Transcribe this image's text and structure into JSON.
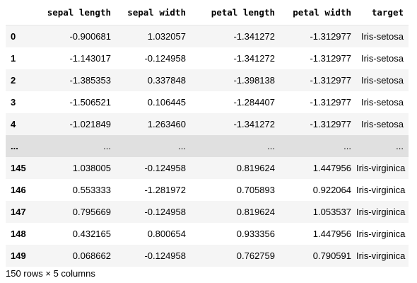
{
  "table": {
    "index_header": "",
    "columns": [
      "sepal length",
      "sepal width",
      "petal length",
      "petal width",
      "target"
    ],
    "rows": [
      {
        "index": "0",
        "cells": [
          "-0.900681",
          "1.032057",
          "-1.341272",
          "-1.312977",
          "Iris-setosa"
        ]
      },
      {
        "index": "1",
        "cells": [
          "-1.143017",
          "-0.124958",
          "-1.341272",
          "-1.312977",
          "Iris-setosa"
        ]
      },
      {
        "index": "2",
        "cells": [
          "-1.385353",
          "0.337848",
          "-1.398138",
          "-1.312977",
          "Iris-setosa"
        ]
      },
      {
        "index": "3",
        "cells": [
          "-1.506521",
          "0.106445",
          "-1.284407",
          "-1.312977",
          "Iris-setosa"
        ]
      },
      {
        "index": "4",
        "cells": [
          "-1.021849",
          "1.263460",
          "-1.341272",
          "-1.312977",
          "Iris-setosa"
        ]
      },
      {
        "index": "...",
        "cells": [
          "...",
          "...",
          "...",
          "...",
          "..."
        ]
      },
      {
        "index": "145",
        "cells": [
          "1.038005",
          "-0.124958",
          "0.819624",
          "1.447956",
          "Iris-virginica"
        ]
      },
      {
        "index": "146",
        "cells": [
          "0.553333",
          "-1.281972",
          "0.705893",
          "0.922064",
          "Iris-virginica"
        ]
      },
      {
        "index": "147",
        "cells": [
          "0.795669",
          "-0.124958",
          "0.819624",
          "1.053537",
          "Iris-virginica"
        ]
      },
      {
        "index": "148",
        "cells": [
          "0.432165",
          "0.800654",
          "0.933356",
          "1.447956",
          "Iris-virginica"
        ]
      },
      {
        "index": "149",
        "cells": [
          "0.068662",
          "-0.124958",
          "0.762759",
          "0.790591",
          "Iris-virginica"
        ]
      }
    ]
  },
  "caption": "150 rows × 5 columns"
}
